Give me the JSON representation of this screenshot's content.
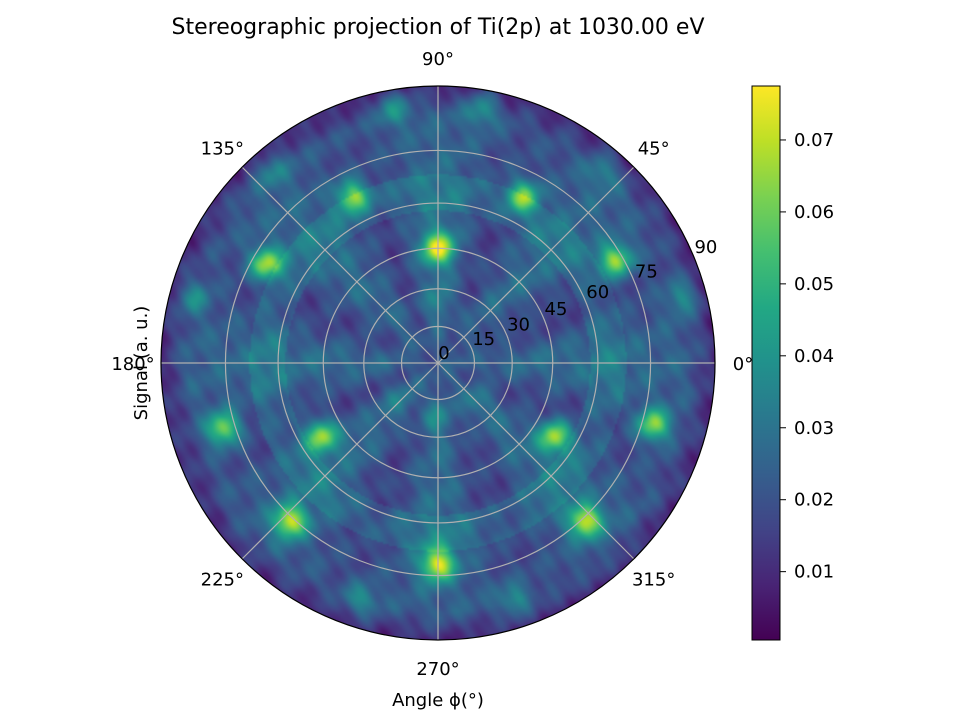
{
  "chart_data": {
    "type": "heatmap",
    "projection": "polar",
    "title": "Stereographic projection of Ti(2p) at 1030.00 eV",
    "xlabel": "Angle ϕ(°)",
    "ylabel": "Signal (a. u.)",
    "angular_ticks": [
      {
        "deg": 0,
        "label": "0°"
      },
      {
        "deg": 45,
        "label": "45°"
      },
      {
        "deg": 90,
        "label": "90°"
      },
      {
        "deg": 135,
        "label": "135°"
      },
      {
        "deg": 180,
        "label": "180°"
      },
      {
        "deg": 225,
        "label": "225°"
      },
      {
        "deg": 270,
        "label": "270°"
      },
      {
        "deg": 315,
        "label": "315°"
      }
    ],
    "radial_ticks": [
      {
        "value": 0,
        "label": "0"
      },
      {
        "value": 15,
        "label": "15"
      },
      {
        "value": 30,
        "label": "30"
      },
      {
        "value": 45,
        "label": "45"
      },
      {
        "value": 60,
        "label": "60"
      },
      {
        "value": 75,
        "label": "75"
      },
      {
        "value": 90,
        "label": "90"
      }
    ],
    "radial_range": [
      0,
      90
    ],
    "radial_scale": "stereographic",
    "grid": true,
    "colormap": "viridis",
    "colorbar": {
      "range": [
        0.0005,
        0.0775
      ],
      "ticks": [
        {
          "value": 0.01,
          "label": "0.01"
        },
        {
          "value": 0.02,
          "label": "0.02"
        },
        {
          "value": 0.03,
          "label": "0.03"
        },
        {
          "value": 0.04,
          "label": "0.04"
        },
        {
          "value": 0.05,
          "label": "0.05"
        },
        {
          "value": 0.06,
          "label": "0.06"
        },
        {
          "value": 0.07,
          "label": "0.07"
        }
      ]
    },
    "background_level": 0.022,
    "features": [
      {
        "phi": 90,
        "theta": 45,
        "value": 0.072
      },
      {
        "phi": 117,
        "theta": 68,
        "value": 0.065
      },
      {
        "phi": 63,
        "theta": 68,
        "value": 0.065
      },
      {
        "phi": 150,
        "theta": 71,
        "value": 0.07
      },
      {
        "phi": 30,
        "theta": 73,
        "value": 0.068
      },
      {
        "phi": 197,
        "theta": 78,
        "value": 0.066
      },
      {
        "phi": 344,
        "theta": 78,
        "value": 0.066
      },
      {
        "phi": 212,
        "theta": 53,
        "value": 0.068
      },
      {
        "phi": 328,
        "theta": 53,
        "value": 0.068
      },
      {
        "phi": 227,
        "theta": 76,
        "value": 0.07
      },
      {
        "phi": 313,
        "theta": 76,
        "value": 0.07
      },
      {
        "phi": 270,
        "theta": 72,
        "value": 0.072
      },
      {
        "phi": 252,
        "theta": 84,
        "value": 0.04
      },
      {
        "phi": 288,
        "theta": 84,
        "value": 0.04
      },
      {
        "phi": 165,
        "theta": 85,
        "value": 0.04
      },
      {
        "phi": 15,
        "theta": 85,
        "value": 0.04
      },
      {
        "phi": 100,
        "theta": 86,
        "value": 0.042
      },
      {
        "phi": 80,
        "theta": 86,
        "value": 0.042
      },
      {
        "phi": 131,
        "theta": 85,
        "value": 0.035
      },
      {
        "phi": 49,
        "theta": 85,
        "value": 0.035
      },
      {
        "phi": 90,
        "theta": 25,
        "value": 0.032
      },
      {
        "phi": 270,
        "theta": 22,
        "value": 0.034
      },
      {
        "phi": 225,
        "theta": 22,
        "value": 0.03
      },
      {
        "phi": 315,
        "theta": 22,
        "value": 0.03
      }
    ]
  }
}
